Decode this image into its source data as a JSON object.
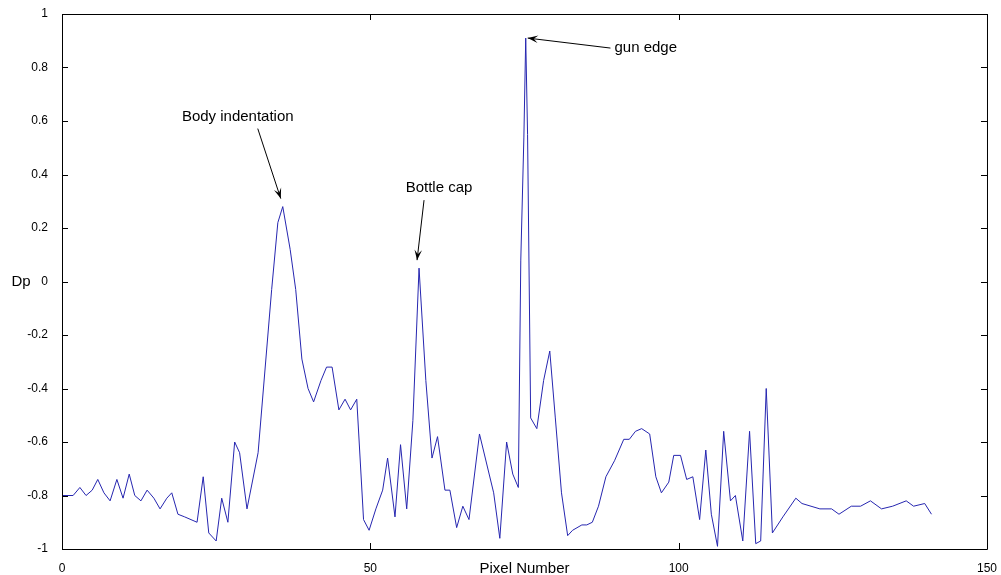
{
  "chart_data": {
    "type": "line",
    "xlabel": "Pixel Number",
    "ylabel": "Dp",
    "xlim": [
      0,
      150
    ],
    "xticks": [
      0,
      50,
      100,
      150
    ],
    "ylim": [
      -1,
      1
    ],
    "yticks": [
      -1,
      -0.8,
      -0.6,
      -0.4,
      -0.2,
      0,
      0.2,
      0.4,
      0.6,
      0.8,
      1
    ],
    "grid": false,
    "legend": false,
    "marker": "none",
    "line_style": "solid",
    "series": [
      {
        "color": "#2626b0",
        "x": [
          0,
          1.8,
          2.9,
          3.9,
          4.9,
          5.8,
          6.8,
          7.8,
          8.9,
          9.9,
          10.9,
          11.8,
          12.8,
          13.8,
          14.9,
          15.9,
          17,
          17.8,
          18.8,
          19.9,
          21.9,
          22.9,
          23.8,
          25,
          25.9,
          26.9,
          28,
          28.8,
          30,
          31.8,
          34,
          35,
          35.8,
          37,
          37.9,
          38.9,
          39.9,
          40.8,
          42,
          42.9,
          43.8,
          44.9,
          45.9,
          46.8,
          47.8,
          48.9,
          49.8,
          50.9,
          52,
          52.8,
          54,
          54.9,
          55.9,
          56.9,
          57.9,
          59,
          60,
          60.9,
          62.1,
          62.9,
          64,
          65,
          66,
          67.7,
          70,
          71,
          72.1,
          73.1,
          74,
          74.4,
          74.9,
          75.2,
          75.5,
          76,
          77,
          78.1,
          79.1,
          80,
          81,
          82,
          82.8,
          84.3,
          85.1,
          86,
          87,
          88.2,
          89.6,
          91.1,
          92,
          93,
          94,
          95.3,
          96.3,
          97.2,
          98.4,
          99.2,
          100.3,
          101.3,
          102.3,
          103.4,
          104.4,
          105.3,
          106.3,
          107.3,
          108.4,
          109.2,
          110.4,
          111.5,
          112.5,
          113.3,
          114.2,
          115.2,
          116.9,
          119,
          120,
          122.9,
          124.8,
          126,
          128,
          129.5,
          131.1,
          132.9,
          134.7,
          136.9,
          138.1,
          139.9,
          141
        ],
        "values": [
          -0.8,
          -0.8,
          -0.77,
          -0.8,
          -0.78,
          -0.74,
          -0.79,
          -0.82,
          -0.74,
          -0.81,
          -0.72,
          -0.8,
          -0.82,
          -0.78,
          -0.81,
          -0.85,
          -0.81,
          -0.79,
          -0.87,
          -0.88,
          -0.9,
          -0.73,
          -0.94,
          -0.97,
          -0.81,
          -0.9,
          -0.6,
          -0.64,
          -0.85,
          -0.64,
          -0.03,
          0.22,
          0.28,
          0.12,
          -0.03,
          -0.29,
          -0.4,
          -0.45,
          -0.37,
          -0.32,
          -0.32,
          -0.48,
          -0.44,
          -0.48,
          -0.44,
          -0.89,
          -0.93,
          -0.85,
          -0.78,
          -0.66,
          -0.88,
          -0.61,
          -0.85,
          -0.52,
          0.05,
          -0.37,
          -0.66,
          -0.58,
          -0.78,
          -0.78,
          -0.92,
          -0.84,
          -0.89,
          -0.57,
          -0.79,
          -0.96,
          -0.6,
          -0.72,
          -0.77,
          0.08,
          0.54,
          0.91,
          0.55,
          -0.51,
          -0.55,
          -0.37,
          -0.26,
          -0.51,
          -0.79,
          -0.95,
          -0.93,
          -0.91,
          -0.91,
          -0.9,
          -0.84,
          -0.73,
          -0.67,
          -0.59,
          -0.59,
          -0.56,
          -0.55,
          -0.57,
          -0.73,
          -0.79,
          -0.75,
          -0.65,
          -0.65,
          -0.74,
          -0.73,
          -0.89,
          -0.63,
          -0.87,
          -0.99,
          -0.56,
          -0.82,
          -0.8,
          -0.97,
          -0.56,
          -0.98,
          -0.97,
          -0.4,
          -0.94,
          -0.88,
          -0.81,
          -0.83,
          -0.85,
          -0.85,
          -0.87,
          -0.84,
          -0.84,
          -0.82,
          -0.85,
          -0.84,
          -0.82,
          -0.84,
          -0.83,
          -0.87
        ]
      }
    ],
    "annotations": [
      {
        "text": "Body indentation",
        "x": 35.8,
        "y": 0.28
      },
      {
        "text": "Bottle cap",
        "x": 57.9,
        "y": 0.05
      },
      {
        "text": "gun edge",
        "x": 75.2,
        "y": 0.91
      }
    ]
  }
}
